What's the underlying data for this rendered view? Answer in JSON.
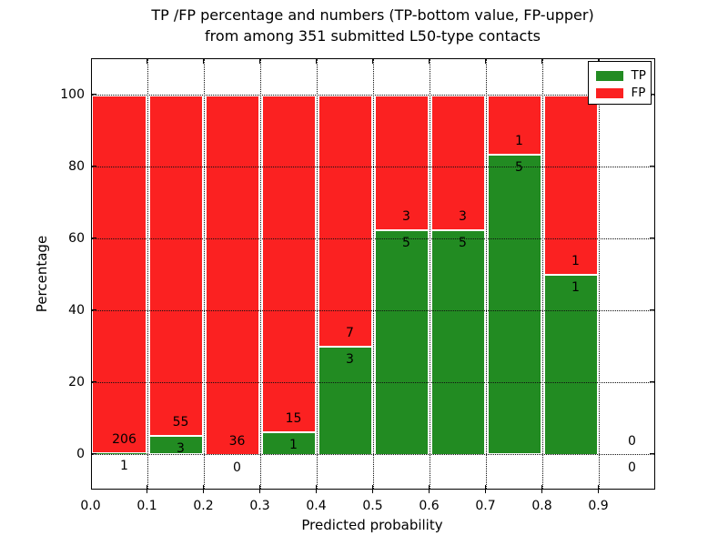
{
  "title": {
    "line1": "TP /FP percentage and numbers (TP-bottom value, FP-upper)",
    "line2": "from among 351 submitted L50-type contacts"
  },
  "colors": {
    "tp": "#228b22",
    "fp": "#fb2121",
    "grid": "#111111",
    "text": "#000000"
  },
  "legend": {
    "items": [
      {
        "label": "TP",
        "color_key": "tp"
      },
      {
        "label": "FP",
        "color_key": "fp"
      }
    ],
    "position": "upper right"
  },
  "chart_data": {
    "type": "stacked_bar_percentage",
    "title": "TP /FP percentage and numbers (TP-bottom value, FP-upper) from among 351 submitted L50-type contacts",
    "xlabel": "Predicted probability",
    "ylabel": "Percentage",
    "xlim": [
      0.0,
      1.0
    ],
    "ylim": [
      -10,
      110
    ],
    "x_tick_labels": [
      "0.0",
      "0.1",
      "0.2",
      "0.3",
      "0.4",
      "0.5",
      "0.6",
      "0.7",
      "0.8",
      "0.9"
    ],
    "y_ticks": [
      0,
      20,
      40,
      60,
      80,
      100
    ],
    "grid": true,
    "total_contacts": 351,
    "series_note": "TP count shown below segment boundary, FP count above; bars are TP percentage (green, bottom) stacked with FP percentage (red, top) summing to 100%",
    "bins": [
      {
        "range": "0.0-0.1",
        "tp": 1,
        "fp": 206,
        "tp_pct": 0.48
      },
      {
        "range": "0.1-0.2",
        "tp": 3,
        "fp": 55,
        "tp_pct": 5.17
      },
      {
        "range": "0.2-0.3",
        "tp": 0,
        "fp": 36,
        "tp_pct": 0.0
      },
      {
        "range": "0.3-0.4",
        "tp": 1,
        "fp": 15,
        "tp_pct": 6.25
      },
      {
        "range": "0.4-0.5",
        "tp": 3,
        "fp": 7,
        "tp_pct": 30.0
      },
      {
        "range": "0.5-0.6",
        "tp": 5,
        "fp": 3,
        "tp_pct": 62.5
      },
      {
        "range": "0.6-0.7",
        "tp": 5,
        "fp": 3,
        "tp_pct": 62.5
      },
      {
        "range": "0.7-0.8",
        "tp": 5,
        "fp": 1,
        "tp_pct": 83.33
      },
      {
        "range": "0.8-0.9",
        "tp": 1,
        "fp": 1,
        "tp_pct": 50.0
      },
      {
        "range": "0.9-1.0",
        "tp": 0,
        "fp": 0,
        "tp_pct": null
      }
    ]
  }
}
